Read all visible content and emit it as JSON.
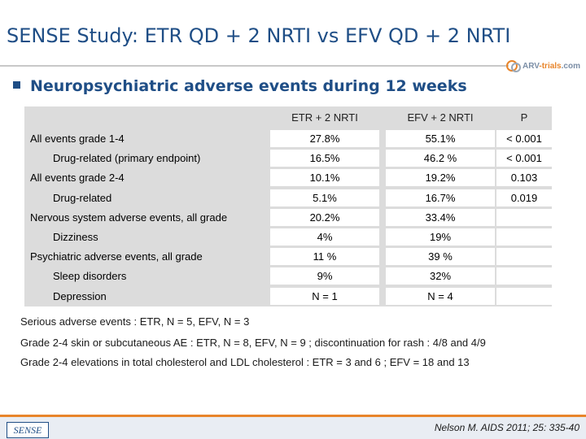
{
  "slide": {
    "title": "SENSE Study: ETR QD + 2 NRTI vs EFV QD + 2 NRTI",
    "logo_text_main": "ARV",
    "logo_text_accent": "-trials",
    "logo_text_suffix": ".com",
    "subtitle": "Neuropsychiatric adverse events during 12 weeks"
  },
  "table": {
    "headers": [
      "ETR + 2 NRTI",
      "EFV + 2 NRTI",
      "P"
    ],
    "rows": [
      {
        "label": "All events grade 1-4",
        "indent": false,
        "etr": "27.8%",
        "efv": "55.1%",
        "p": "< 0.001"
      },
      {
        "label": "Drug-related (primary endpoint)",
        "indent": true,
        "etr": "16.5%",
        "efv": "46.2 %",
        "p": "< 0.001"
      },
      {
        "label": "All events grade 2-4",
        "indent": false,
        "etr": "10.1%",
        "efv": "19.2%",
        "p": "0.103"
      },
      {
        "label": "Drug-related",
        "indent": true,
        "etr": "5.1%",
        "efv": "16.7%",
        "p": "0.019"
      },
      {
        "label": "Nervous system adverse events, all grade",
        "indent": false,
        "etr": "20.2%",
        "efv": "33.4%",
        "p": ""
      },
      {
        "label": "Dizziness",
        "indent": true,
        "etr": "4%",
        "efv": "19%",
        "p": ""
      },
      {
        "label": "Psychiatric adverse events, all grade",
        "indent": false,
        "etr": "11 %",
        "efv": "39 %",
        "p": ""
      },
      {
        "label": "Sleep disorders",
        "indent": true,
        "etr": "9%",
        "efv": "32%",
        "p": ""
      },
      {
        "label": "Depression",
        "indent": true,
        "etr": "N = 1",
        "efv": "N = 4",
        "p": ""
      }
    ]
  },
  "notes": [
    "Serious adverse events : ETR, N = 5, EFV, N = 3",
    "Grade 2-4 skin or subcutaneous AE : ETR, N = 8, EFV, N = 9 ; discontinuation for rash : 4/8 and 4/9",
    "Grade 2-4 elevations in total cholesterol and LDL cholesterol : ETR = 3 and 6 ; EFV = 18 and 13"
  ],
  "footer": {
    "tag": "SENSE",
    "citation": "Nelson M. AIDS 2011; 25: 335-40"
  }
}
